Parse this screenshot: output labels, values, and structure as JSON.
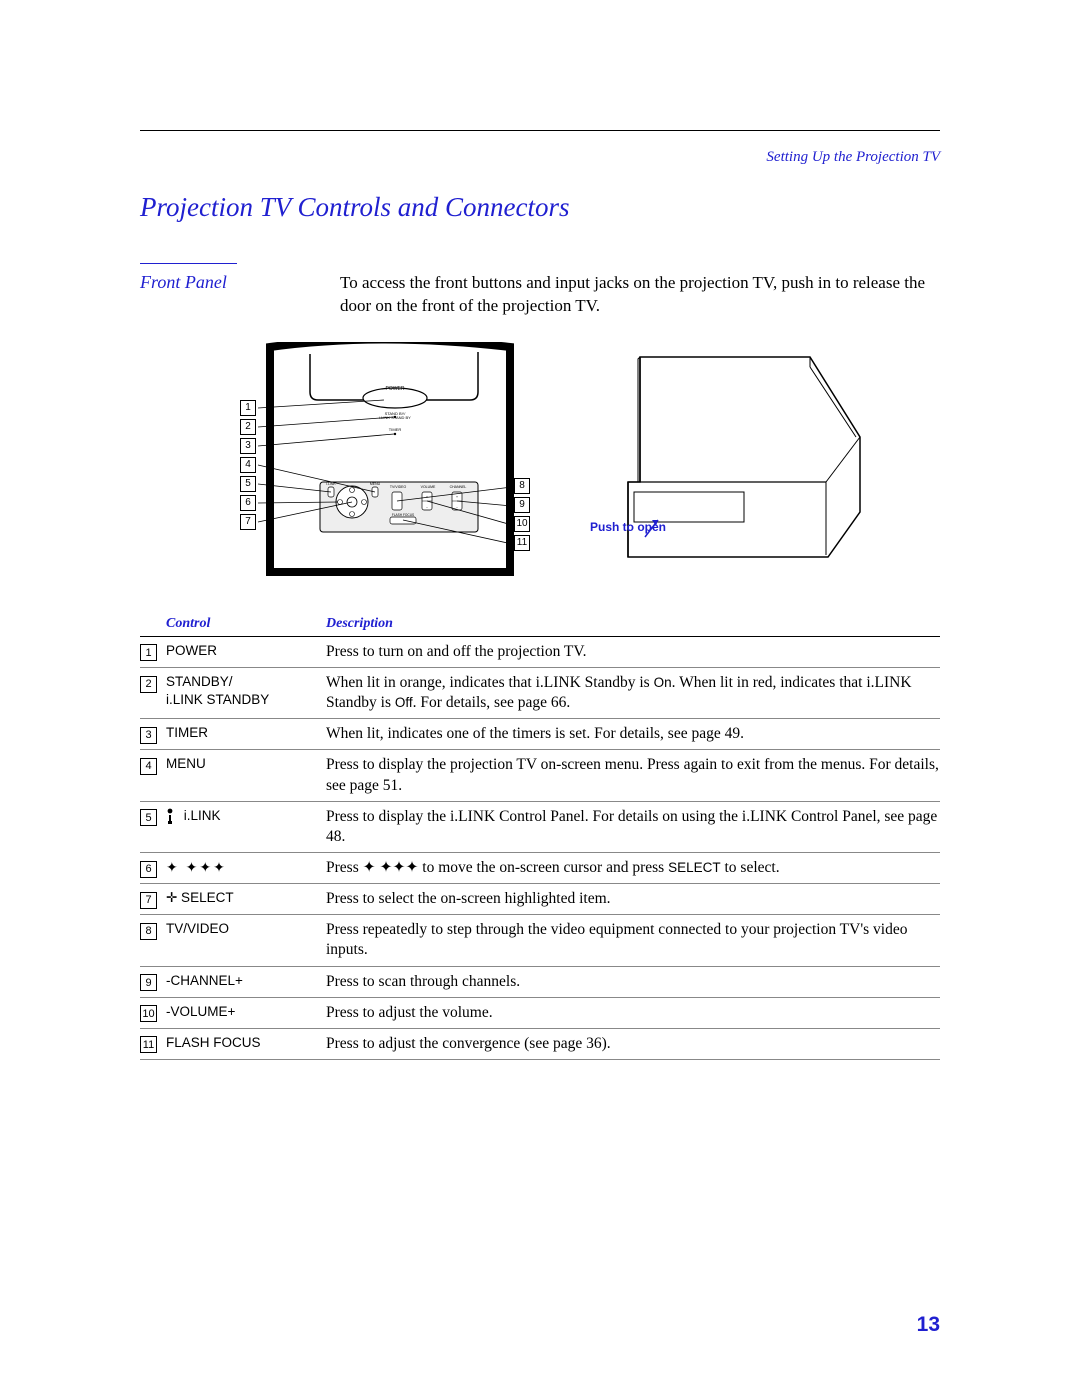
{
  "breadcrumb": "Setting Up the Projection TV",
  "heading": "Projection TV Controls and Connectors",
  "subheading": "Front Panel",
  "intro": "To access the front buttons and input jacks on the projection TV, push in to release the door on the front of the projection TV.",
  "push_label": "Push to open",
  "table": {
    "header_control": "Control",
    "header_description": "Description",
    "rows": [
      {
        "n": "1",
        "control": "POWER",
        "desc": "Press to turn on and off the projection TV."
      },
      {
        "n": "2",
        "control": "STANDBY/\ni.LINK STANDBY",
        "desc_parts": [
          "When lit in orange, indicates that i.LINK Standby is ",
          {
            "sans": "On"
          },
          ". When lit in red, indicates that i.LINK Standby is ",
          {
            "sans": "Off"
          },
          ". For details, see page 66."
        ]
      },
      {
        "n": "3",
        "control": "TIMER",
        "desc": "When lit, indicates one of the timers is set. For details, see page 49."
      },
      {
        "n": "4",
        "control": "MENU",
        "desc": "Press to display the projection TV on-screen menu. Press again to exit from the menus. For details, see page 51."
      },
      {
        "n": "5",
        "control_ilink": true,
        "control": "i.LINK",
        "desc": "Press to display the i.LINK Control Panel. For details on using the i.LINK Control Panel, see page 48."
      },
      {
        "n": "6",
        "control_arrows": true,
        "desc_parts": [
          "Press ✦ ✦✦✦ to move the on-screen cursor and press ",
          {
            "sans": "SELECT"
          },
          " to select."
        ]
      },
      {
        "n": "7",
        "control": "✛  SELECT",
        "desc": "Press to select the on-screen highlighted item."
      },
      {
        "n": "8",
        "control": "TV/VIDEO",
        "desc": "Press repeatedly to step through the video equipment connected to your projection TV's video inputs."
      },
      {
        "n": "9",
        "control": "-CHANNEL+",
        "desc": "Press to scan through channels."
      },
      {
        "n": "10",
        "control": "-VOLUME+",
        "desc": "Press to adjust the volume."
      },
      {
        "n": "11",
        "control": "FLASH FOCUS",
        "desc": "Press to adjust the convergence (see page 36)."
      }
    ]
  },
  "page_number": "13",
  "colors": {
    "accent": "#2020d0",
    "text": "#000000",
    "rule_gray": "#888888",
    "background": "#ffffff"
  },
  "diagram": {
    "left_callouts": [
      "1",
      "2",
      "3",
      "4",
      "5",
      "6",
      "7"
    ],
    "right_callouts": [
      "8",
      "9",
      "10",
      "11"
    ],
    "panel_labels": [
      "POWER",
      "STAND BY/\ni.LINK STAND BY",
      "TIMER",
      "MENU",
      "i.LINK",
      "TV/VIDEO",
      "VOLUME",
      "CHANNEL",
      "FLASH FOCUS"
    ]
  }
}
